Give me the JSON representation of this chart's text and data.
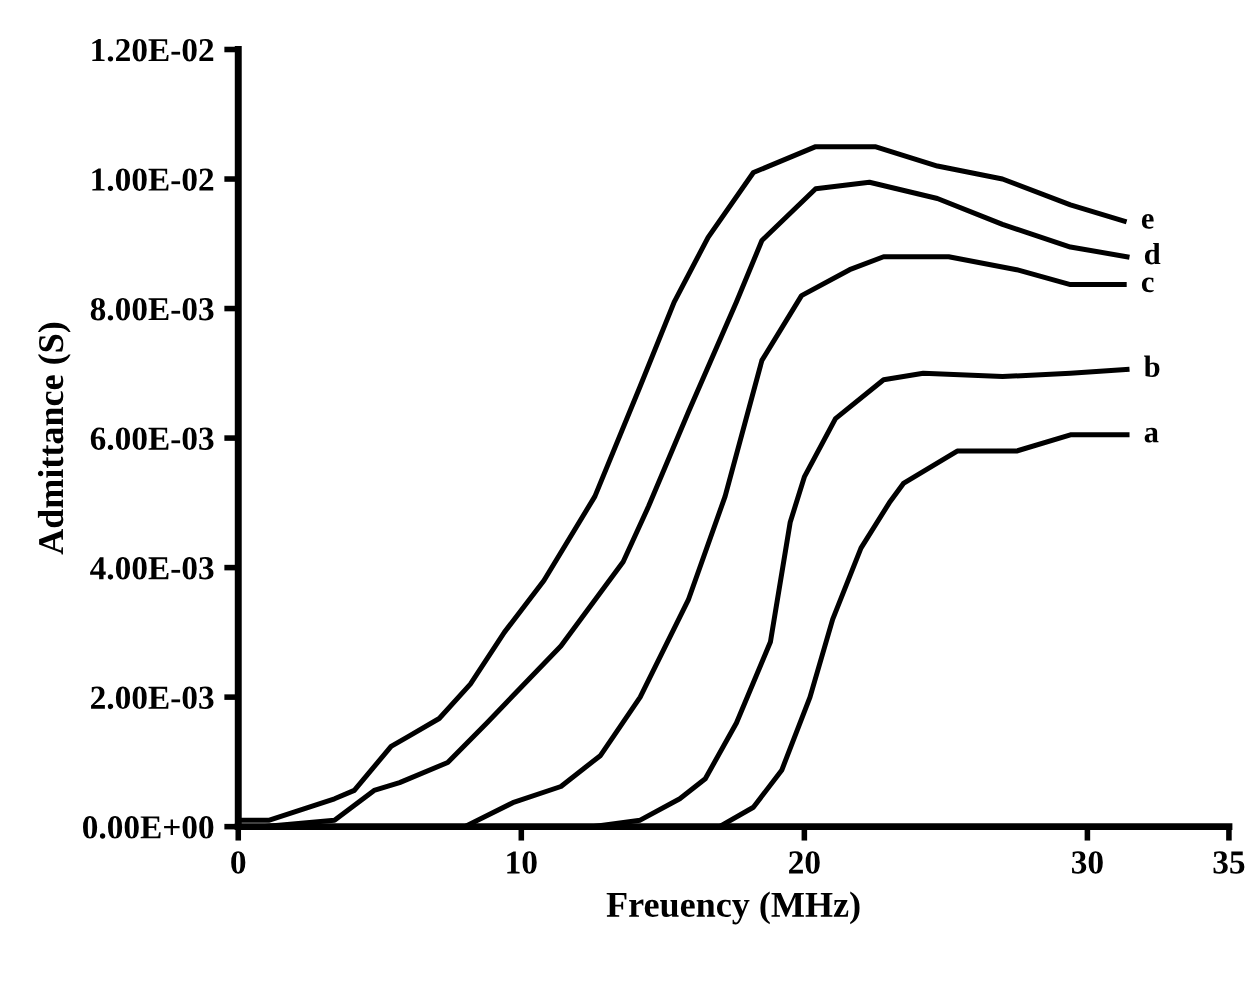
{
  "chart_data": {
    "type": "line",
    "xlabel": "Freuency (MHz)",
    "ylabel": "Admittance (S)",
    "xlim": [
      0,
      35
    ],
    "xticks": [
      0,
      10,
      20,
      30,
      35
    ],
    "ylim": [
      0,
      0.012
    ],
    "yticks": [
      {
        "value": 0,
        "label": "0.00E+00"
      },
      {
        "value": 0.002,
        "label": "2.00E-03"
      },
      {
        "value": 0.004,
        "label": "4.00E-03"
      },
      {
        "value": 0.006,
        "label": "6.00E-03"
      },
      {
        "value": 0.008,
        "label": "8.00E-03"
      },
      {
        "value": 0.01,
        "label": "1.00E-02"
      },
      {
        "value": 0.012,
        "label": "1.20E-02"
      }
    ],
    "grid": false,
    "legend": false,
    "marker": "none",
    "line_style": "solid",
    "series": [
      {
        "name": "e",
        "color": "#000000",
        "x": [
          0,
          1.1,
          3.4,
          4.1,
          5.4,
          6.0,
          7.1,
          8.2,
          9.4,
          10.8,
          12.6,
          14.2,
          15.4,
          16.6,
          18.2,
          20.4,
          22.5,
          24.7,
          27.0,
          29.4,
          31.3
        ],
        "values": [
          0.0001,
          0.0001,
          0.00043,
          0.00056,
          0.00124,
          0.00139,
          0.00167,
          0.0022,
          0.003,
          0.0038,
          0.0051,
          0.0068,
          0.0081,
          0.0091,
          0.0101,
          0.0105,
          0.0105,
          0.0102,
          0.01,
          0.0096,
          0.00935
        ]
      },
      {
        "name": "d",
        "color": "#000000",
        "x": [
          0.85,
          3.4,
          4.8,
          5.7,
          7.4,
          8.8,
          11.4,
          13.6,
          14.5,
          15.9,
          17.6,
          18.5,
          20.4,
          22.3,
          24.7,
          27.0,
          29.4,
          31.4
        ],
        "values": [
          0,
          0.0001,
          0.00056,
          0.00068,
          0.00099,
          0.00161,
          0.00279,
          0.00409,
          0.00495,
          0.0064,
          0.0081,
          0.00905,
          0.00985,
          0.00995,
          0.0097,
          0.0093,
          0.00895,
          0.0088
        ]
      },
      {
        "name": "c",
        "color": "#000000",
        "x": [
          8.0,
          9.7,
          11.4,
          12.8,
          14.2,
          15.9,
          17.2,
          18.5,
          19.9,
          21.6,
          22.8,
          25.1,
          27.5,
          29.4,
          31.3
        ],
        "values": [
          0,
          0.00037,
          0.00062,
          0.0011,
          0.002,
          0.0035,
          0.0051,
          0.0072,
          0.0082,
          0.0086,
          0.0088,
          0.0088,
          0.0086,
          0.00837,
          0.00837
        ]
      },
      {
        "name": "b",
        "color": "#000000",
        "x": [
          12.5,
          14.2,
          15.6,
          16.5,
          17.6,
          18.8,
          19.5,
          20.0,
          21.1,
          22.8,
          24.2,
          27.0,
          29.4,
          31.4
        ],
        "values": [
          0,
          0.0001,
          0.00043,
          0.00074,
          0.0016,
          0.00285,
          0.0047,
          0.0054,
          0.0063,
          0.0069,
          0.007,
          0.00695,
          0.007,
          0.00706
        ]
      },
      {
        "name": "a",
        "color": "#000000",
        "x": [
          17.0,
          18.2,
          19.2,
          20.2,
          21.0,
          22.0,
          23.0,
          23.5,
          25.4,
          27.5,
          29.4,
          31.4
        ],
        "values": [
          0,
          0.0003,
          0.00087,
          0.002,
          0.0032,
          0.0043,
          0.005,
          0.0053,
          0.0058,
          0.0058,
          0.00605,
          0.00605
        ]
      }
    ]
  }
}
